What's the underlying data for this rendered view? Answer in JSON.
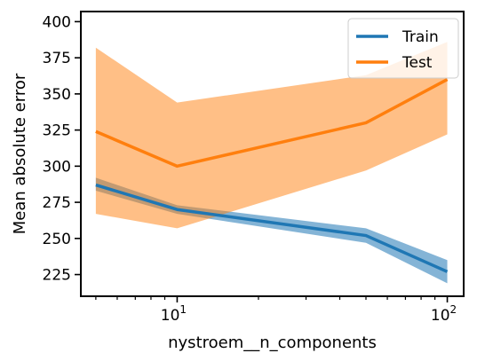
{
  "chart_data": {
    "type": "line",
    "title": "",
    "xlabel": "nystroem__n_components",
    "ylabel": "Mean absolute error",
    "xscale": "log",
    "xlim": [
      4.4,
      115
    ],
    "ylim": [
      210,
      407
    ],
    "yticks": [
      225,
      250,
      275,
      300,
      325,
      350,
      375,
      400
    ],
    "xticks": [
      {
        "value": 10,
        "base": "10",
        "exp": "1"
      },
      {
        "value": 100,
        "base": "10",
        "exp": "2"
      }
    ],
    "legend_position": "upper-right",
    "grid": false,
    "series": [
      {
        "name": "Train",
        "color": "#1f77b4",
        "x": [
          5,
          10,
          50,
          100
        ],
        "mean": [
          287,
          270,
          252,
          227
        ],
        "lower": [
          283,
          267,
          247,
          219
        ],
        "upper": [
          292,
          273,
          257,
          235
        ]
      },
      {
        "name": "Test",
        "color": "#ff7f0e",
        "x": [
          5,
          10,
          50,
          100
        ],
        "mean": [
          324,
          300,
          330,
          360
        ],
        "lower": [
          267,
          257,
          297,
          322
        ],
        "upper": [
          382,
          344,
          363,
          386
        ]
      }
    ]
  }
}
